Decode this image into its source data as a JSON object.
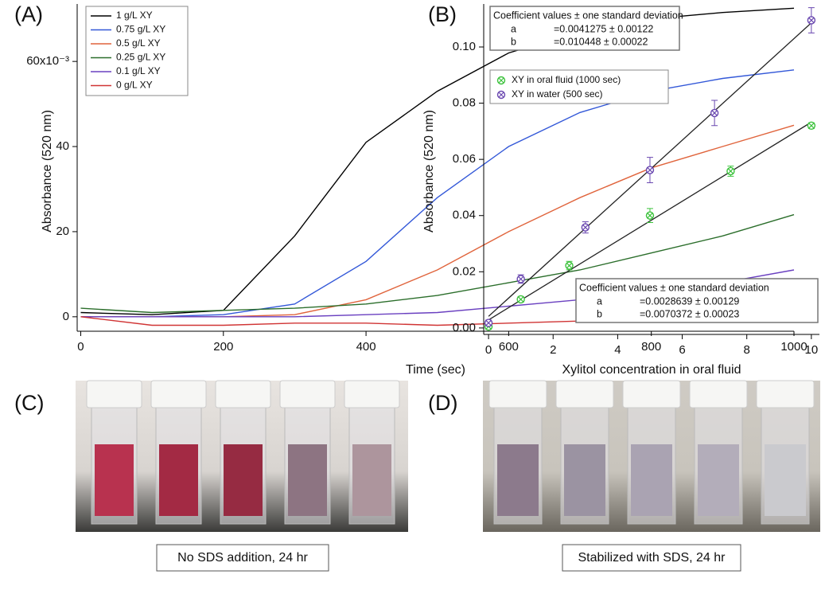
{
  "panel_labels": [
    "(A)",
    "(B)",
    "(C)",
    "(D)"
  ],
  "chart_data": [
    {
      "type": "line",
      "xlabel": "Time (sec)",
      "ylabel": "Absorbance (520 nm)",
      "x": [
        0,
        100,
        200,
        300,
        400,
        500,
        600,
        700,
        800,
        900,
        1000
      ],
      "xlim": [
        -5,
        1000
      ],
      "xticks": [
        0,
        200,
        400,
        600,
        800,
        1000
      ],
      "ylim": [
        -3.4,
        73.5
      ],
      "yticks": [
        0,
        20,
        40,
        {
          "value": 60,
          "label": "60x10⁻³"
        }
      ],
      "series": [
        {
          "name": "1 g/L XY",
          "color": "#000000",
          "values": [
            1,
            0.5,
            1.5,
            19,
            41,
            53,
            62,
            67,
            70,
            71.5,
            72.5
          ]
        },
        {
          "name": "0.75 g/L XY",
          "color": "#3358d8",
          "values": [
            0,
            0,
            0.5,
            3,
            13,
            28,
            40,
            48,
            53,
            56,
            58
          ]
        },
        {
          "name": "0.5 g/L XY",
          "color": "#e0643c",
          "values": [
            0,
            0,
            0,
            0.5,
            4,
            11,
            20,
            28,
            35,
            40,
            45
          ]
        },
        {
          "name": "0.25  g/L XY",
          "color": "#2b6e2b",
          "values": [
            2,
            1,
            1.5,
            2,
            3,
            5,
            8,
            11,
            15,
            19,
            24
          ]
        },
        {
          "name": "0.1 g/L XY",
          "color": "#6a40c0",
          "values": [
            0,
            0,
            0,
            0,
            0.5,
            1,
            2.5,
            4,
            6,
            8,
            11
          ]
        },
        {
          "name": "0 g/L XY",
          "color": "#d03434",
          "values": [
            0,
            -2,
            -2,
            -1.5,
            -1.5,
            -2,
            -1.5,
            -1,
            -0.5,
            0,
            0.5
          ]
        }
      ]
    },
    {
      "type": "scatter",
      "xlabel": "Xylitol concentration in oral fluid",
      "ylabel": "Absorbance (520 nm)",
      "xlim": [
        -0.15,
        10.25
      ],
      "xticks": [
        0,
        2,
        4,
        6,
        8,
        10
      ],
      "ylim": [
        -0.0023,
        0.1153
      ],
      "yticks": [
        {
          "value": 0,
          "label": "0.00"
        },
        {
          "value": 0.02,
          "label": "0.02"
        },
        {
          "value": 0.04,
          "label": "0.04"
        },
        {
          "value": 0.06,
          "label": "0.06"
        },
        {
          "value": 0.08,
          "label": "0.08"
        },
        {
          "value": 0.1,
          "label": "0.10"
        }
      ],
      "series": [
        {
          "name": "XY in oral fluid (1000 sec)",
          "color": "#3cc23c",
          "x": [
            0,
            1,
            2.5,
            5,
            7.5,
            10
          ],
          "values": [
            0.0005,
            0.0102,
            0.0222,
            0.04,
            0.0558,
            0.072
          ],
          "errors": [
            0.001,
            0.001,
            0.0015,
            0.0025,
            0.0018,
            0.001
          ],
          "fit": {
            "title": "Coefficient values ± one standard deviation",
            "terms": [
              {
                "name": "a",
                "value": 0.0028639,
                "label": "=0.0028639 ± 0.00129"
              },
              {
                "name": "b",
                "value": 0.0070372,
                "label": "=0.0070372 ± 0.00023"
              }
            ]
          }
        },
        {
          "name": "XY in water (500 sec)",
          "color": "#6a48b0",
          "x": [
            0,
            1,
            3,
            5,
            7,
            10
          ],
          "values": [
            0.0018,
            0.0174,
            0.0358,
            0.0562,
            0.0765,
            0.1095
          ],
          "errors": [
            0.001,
            0.0015,
            0.002,
            0.0045,
            0.0045,
            0.0045
          ],
          "fit": {
            "title": "Coefficient values ± one standard deviation",
            "terms": [
              {
                "name": "a",
                "value": 0.0041275,
                "label": "=0.0041275 ± 0.00122"
              },
              {
                "name": "b",
                "value": 0.010448,
                "label": "=0.010448 ± 0.00022"
              }
            ]
          }
        }
      ]
    }
  ],
  "photos": [
    {
      "caption": "No SDS addition, 24  hr"
    },
    {
      "caption": "Stabilized with SDS, 24 hr"
    }
  ]
}
